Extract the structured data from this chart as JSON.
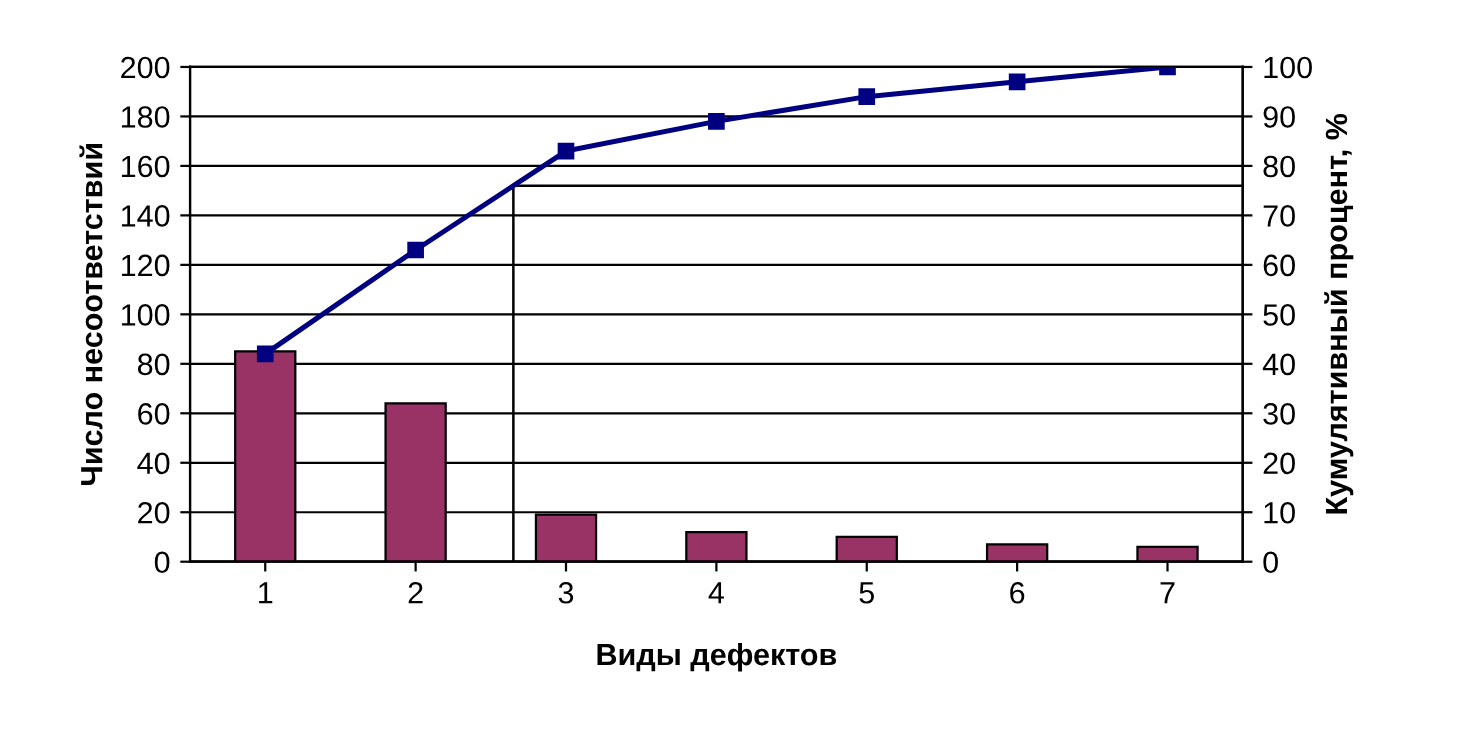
{
  "chart_data": {
    "type": "bar",
    "xlabel": "Виды дефектов",
    "ylabel": "Число несоответствий",
    "y2label": "Кумулятивный процент, %",
    "x": [
      1,
      2,
      3,
      4,
      5,
      6,
      7
    ],
    "xlim": [
      0.5,
      7.5
    ],
    "xticks": [
      1,
      2,
      3,
      4,
      5,
      6,
      7
    ],
    "ylim": [
      0,
      200
    ],
    "yticks": [
      0,
      20,
      40,
      60,
      80,
      100,
      120,
      140,
      160,
      180,
      200
    ],
    "y2lim": [
      0,
      100
    ],
    "y2ticks": [
      0,
      10,
      20,
      30,
      40,
      50,
      60,
      70,
      80,
      90,
      100
    ],
    "grid": "y",
    "legend": false,
    "series": [
      {
        "color": "#993366",
        "values": [
          85,
          64,
          19,
          12,
          10,
          7,
          6
        ]
      },
      {
        "type": "line",
        "axis": "y2",
        "color": "#000080",
        "marker": "square",
        "line_style": "solid",
        "values": [
          42,
          63,
          83,
          89,
          94,
          97,
          100
        ]
      }
    ],
    "ref_lines": [
      {
        "axis": "y2",
        "value": 76,
        "color": "#000000"
      },
      {
        "axis": "x",
        "value": 2.65,
        "color": "#000000"
      }
    ]
  }
}
